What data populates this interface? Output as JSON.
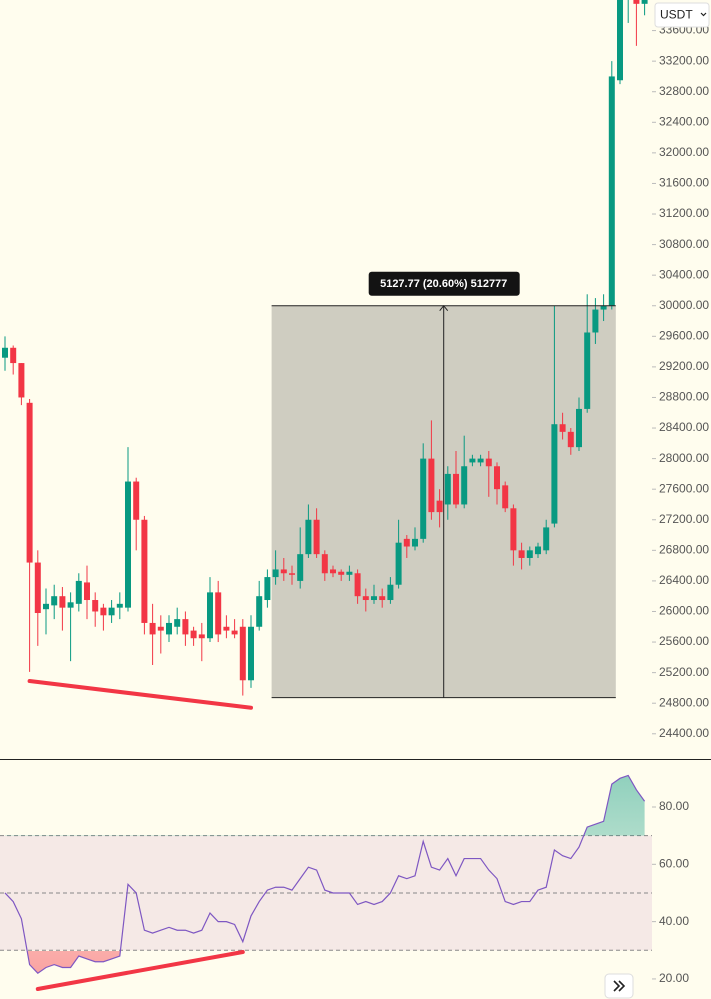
{
  "chart_data": [
    {
      "type": "candlestick",
      "open": [
        29320,
        29450,
        29250,
        28730,
        26640,
        26030,
        26080,
        26200,
        26050,
        26100,
        26380,
        26150,
        26050,
        25950,
        26050,
        26050,
        27700,
        27200,
        25850,
        25800,
        25700,
        25800,
        25900,
        25750,
        25700,
        25650,
        26250,
        25800,
        25750,
        25800,
        25100,
        25800,
        26150,
        26450,
        26550,
        26500,
        26400,
        26750,
        27200,
        26750,
        26550,
        26520,
        26480,
        26500,
        26200,
        26150,
        26200,
        26150,
        26350,
        26950,
        26850,
        26950,
        28000,
        27450,
        27400,
        27800,
        27400,
        27950,
        27950,
        28000,
        27900,
        27650,
        27350,
        26800,
        26700,
        26750,
        26800,
        27150,
        28450,
        28350,
        28150,
        28650,
        29650,
        29950,
        30000,
        32950,
        34000,
        34100,
        33950
      ],
      "high": [
        29600,
        29480,
        29250,
        28780,
        26800,
        26300,
        26350,
        26320,
        26250,
        26500,
        26600,
        26250,
        26100,
        26150,
        26250,
        28150,
        27750,
        27250,
        26100,
        25950,
        25950,
        26050,
        26000,
        25800,
        25850,
        26450,
        26400,
        25950,
        25900,
        25900,
        25950,
        26400,
        26550,
        26800,
        26700,
        26600,
        27100,
        27400,
        27350,
        26800,
        26600,
        26550,
        26600,
        26550,
        26300,
        26350,
        26300,
        26450,
        27200,
        27000,
        27100,
        28200,
        28500,
        27600,
        27900,
        28100,
        28300,
        28050,
        28050,
        28100,
        27950,
        27700,
        27400,
        26900,
        26850,
        26900,
        27200,
        30000,
        28600,
        28400,
        28800,
        30150,
        30100,
        30150,
        33200,
        34200,
        34300,
        34200,
        34200
      ],
      "low": [
        29150,
        29100,
        28700,
        25210,
        25550,
        25700,
        25900,
        25750,
        25350,
        26000,
        25900,
        25800,
        25750,
        25850,
        25900,
        26000,
        26800,
        25700,
        25300,
        25450,
        25600,
        25700,
        25550,
        25550,
        25350,
        25600,
        25600,
        25650,
        25650,
        24900,
        25000,
        25750,
        26050,
        26350,
        26400,
        26350,
        26300,
        26700,
        26700,
        26400,
        26450,
        26400,
        26400,
        26100,
        26000,
        26100,
        26050,
        26100,
        26300,
        26700,
        26800,
        26900,
        27200,
        27100,
        27200,
        27350,
        27350,
        27900,
        27900,
        27500,
        27400,
        27300,
        26600,
        26550,
        26600,
        26700,
        26750,
        27100,
        28250,
        28050,
        28100,
        28600,
        29500,
        29800,
        29950,
        32900,
        33700,
        33400,
        33800
      ],
      "close": [
        29450,
        29250,
        28800,
        26640,
        25980,
        26100,
        26200,
        26050,
        26120,
        26400,
        26150,
        26000,
        25950,
        26050,
        26100,
        27700,
        27200,
        25850,
        25700,
        25750,
        25850,
        25900,
        25700,
        25650,
        25650,
        26250,
        25700,
        25750,
        25700,
        25100,
        25800,
        26200,
        26450,
        26550,
        26500,
        26480,
        26750,
        27200,
        26750,
        26500,
        26500,
        26480,
        26520,
        26200,
        26150,
        26200,
        26150,
        26350,
        26900,
        26850,
        26950,
        28000,
        27300,
        27300,
        27800,
        27400,
        27900,
        28000,
        28000,
        27900,
        27600,
        27350,
        26800,
        26700,
        26800,
        26850,
        27100,
        28450,
        28350,
        28150,
        28650,
        29650,
        29950,
        30000,
        33000,
        34000,
        34100,
        33950,
        34050
      ],
      "up_color": "#089981",
      "down_color": "#f23645",
      "ylim": [
        24070,
        34000
      ],
      "yticks": [
        {
          "value": 24400,
          "label": "24400.00"
        },
        {
          "value": 24800,
          "label": "24800.00"
        },
        {
          "value": 25200,
          "label": "25200.00"
        },
        {
          "value": 25600,
          "label": "25600.00"
        },
        {
          "value": 26000,
          "label": "26000.00"
        },
        {
          "value": 26400,
          "label": "26400.00"
        },
        {
          "value": 26800,
          "label": "26800.00"
        },
        {
          "value": 27200,
          "label": "27200.00"
        },
        {
          "value": 27600,
          "label": "27600.00"
        },
        {
          "value": 28000,
          "label": "28000.00"
        },
        {
          "value": 28400,
          "label": "28400.00"
        },
        {
          "value": 28800,
          "label": "28800.00"
        },
        {
          "value": 29200,
          "label": "29200.00"
        },
        {
          "value": 29600,
          "label": "29600.00"
        },
        {
          "value": 30000,
          "label": "30000.00"
        },
        {
          "value": 30400,
          "label": "30400.00"
        },
        {
          "value": 30800,
          "label": "30800.00"
        },
        {
          "value": 31200,
          "label": "31200.00"
        },
        {
          "value": 31600,
          "label": "31600.00"
        },
        {
          "value": 32000,
          "label": "32000.00"
        },
        {
          "value": 32400,
          "label": "32400.00"
        },
        {
          "value": 32800,
          "label": "32800.00"
        },
        {
          "value": 33200,
          "label": "33200.00"
        },
        {
          "value": 33600,
          "label": "33600.00"
        }
      ],
      "currency": "USDT",
      "measure": {
        "text": "5127.77 (20.60%) 512777",
        "from_index": 33,
        "to_index": 74,
        "from_price": 24872.23,
        "to_price": 30000
      },
      "trendline": {
        "from_index": 3,
        "from_price": 25090,
        "to_index": 30,
        "to_price": 24740,
        "color": "#f23645"
      }
    },
    {
      "type": "line",
      "values": [
        50,
        47,
        41,
        25,
        22,
        24,
        25,
        24,
        24,
        28,
        27,
        26,
        26,
        27,
        28,
        53,
        50,
        37,
        36,
        37,
        38,
        37,
        37,
        36,
        37,
        43,
        40,
        40,
        39,
        33,
        42,
        47,
        51,
        52,
        52,
        51,
        55,
        59,
        58,
        51,
        50,
        50,
        50,
        46,
        47,
        46,
        47,
        50,
        56,
        55,
        56,
        68,
        59,
        58,
        62,
        56,
        62,
        62,
        62,
        58,
        55,
        47,
        46,
        47,
        47,
        51,
        52,
        65,
        63,
        62,
        66,
        73,
        74,
        75,
        88,
        90,
        91,
        86,
        82
      ],
      "color": "#7e57c2",
      "ylim": [
        13,
        96.4
      ],
      "yticks": [
        {
          "value": 20,
          "label": "20.00"
        },
        {
          "value": 40,
          "label": "40.00"
        },
        {
          "value": 60,
          "label": "60.00"
        },
        {
          "value": 80,
          "label": "80.00"
        }
      ],
      "levels": [
        30,
        50,
        70
      ],
      "trendline": {
        "from_index": 4,
        "from_value": 16.5,
        "to_index": 29,
        "to_value": 29.4,
        "color": "#f23645"
      }
    }
  ]
}
